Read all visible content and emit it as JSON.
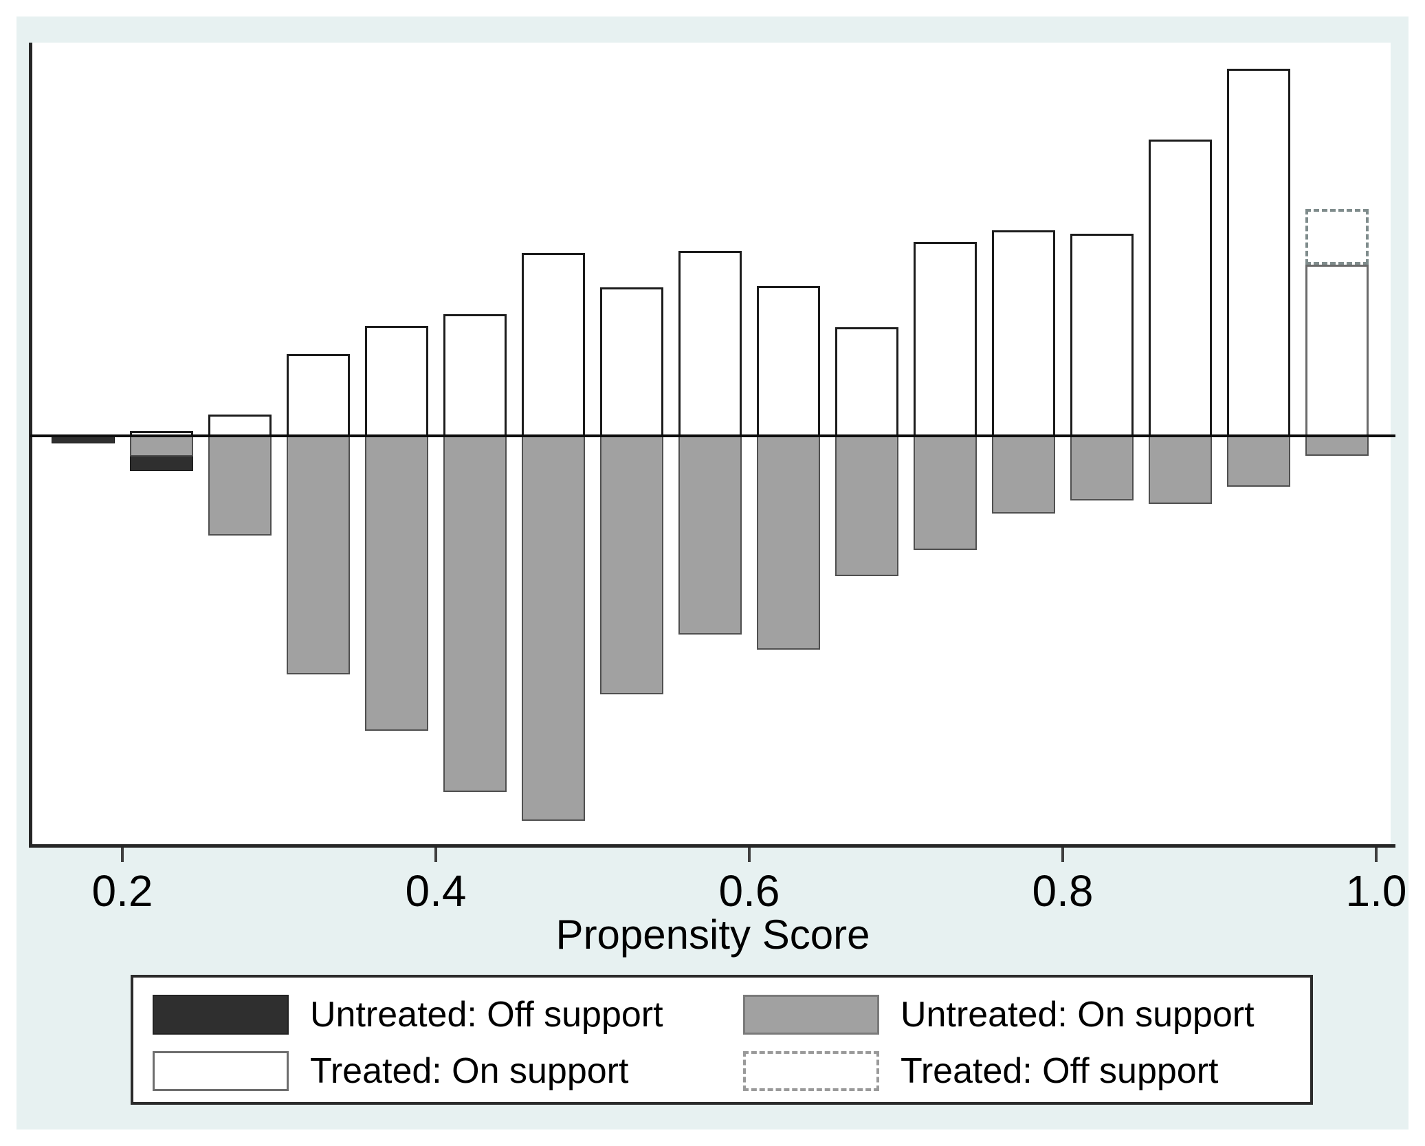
{
  "figure": {
    "xlabel": "Propensity Score"
  },
  "x_axis": {
    "tick_values": [
      0.2,
      0.4,
      0.6,
      0.8,
      1.0
    ],
    "decimals": 1
  },
  "y_axis": {
    "tick_labels_visible": false
  },
  "legend": {
    "position": "bottom",
    "items": [
      {
        "label": "Untreated: Off support",
        "swatch": "dark-fill"
      },
      {
        "label": "Treated: On support",
        "swatch": "white-outline"
      },
      {
        "label": "Untreated: On support",
        "swatch": "gray-fill"
      },
      {
        "label": "Treated: Off support",
        "swatch": "dashed-outline"
      }
    ]
  },
  "colors": {
    "graph_background": "#e7f1f1",
    "plot_background": "#ffffff",
    "axis": "#262626",
    "untreated_off_support": "#2f2f2f",
    "untreated_on_support": "#a1a1a1",
    "treated_on_support_fill": "#ffffff",
    "treated_on_support_outline": "#1c1c1c",
    "treated_off_support_dash": "#7f8c8c"
  },
  "chart_data": {
    "type": "bar",
    "subtype": "mirrored-histogram (Stata psgraph common support)",
    "xlabel": "Propensity Score",
    "x_ticks": [
      0.2,
      0.4,
      0.6,
      0.8,
      1.0
    ],
    "xlim": [
      0.141,
      1.012
    ],
    "bin_width": 0.05,
    "bin_centers": [
      0.175,
      0.225,
      0.275,
      0.325,
      0.375,
      0.425,
      0.475,
      0.525,
      0.575,
      0.625,
      0.675,
      0.725,
      0.775,
      0.825,
      0.875,
      0.925,
      0.975
    ],
    "units": "relative bar heights in screenshot pixels; no numeric y-axis labels are displayed; treated bars extend up from the zero line, untreated bars extend down",
    "series": [
      {
        "name": "Treated: On support",
        "direction": "up",
        "values": [
          0,
          7,
          31,
          119,
          160,
          177,
          266,
          216,
          269,
          218,
          158,
          282,
          299,
          294,
          431,
          534,
          249
        ]
      },
      {
        "name": "Treated: Off support",
        "direction": "up",
        "stacked_on": "Treated: On support",
        "values": [
          0,
          0,
          0,
          0,
          0,
          0,
          0,
          0,
          0,
          0,
          0,
          0,
          0,
          0,
          0,
          0,
          81
        ]
      },
      {
        "name": "Untreated: On support",
        "direction": "down",
        "values": [
          0,
          30,
          145,
          347,
          429,
          518,
          560,
          376,
          289,
          311,
          204,
          166,
          113,
          94,
          99,
          74,
          29
        ]
      },
      {
        "name": "Untreated: Off support",
        "direction": "down",
        "stacked_on": "Untreated: On support",
        "values": [
          11,
          21,
          0,
          0,
          0,
          0,
          0,
          0,
          0,
          0,
          0,
          0,
          0,
          0,
          0,
          0,
          0
        ]
      }
    ],
    "grid": false,
    "legend_position": "below x-axis, boxed, 2 columns"
  }
}
